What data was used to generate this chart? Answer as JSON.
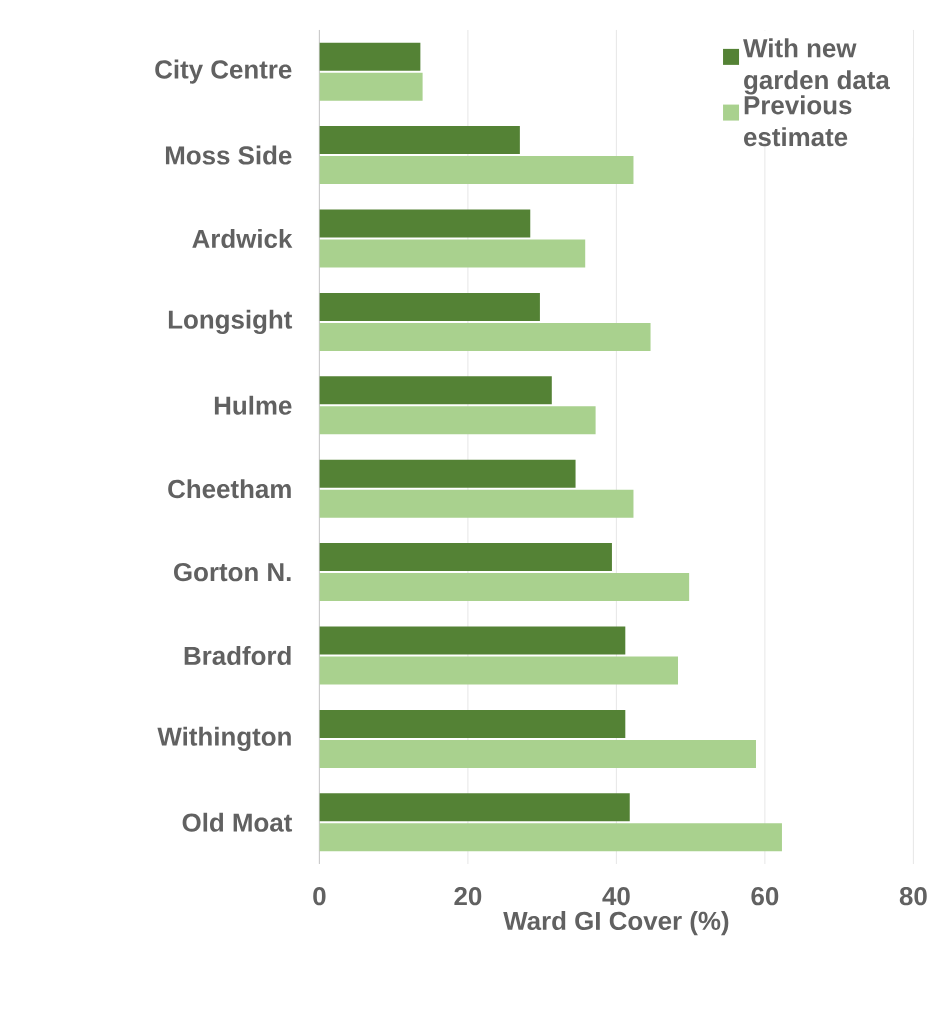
{
  "chart_data": {
    "type": "bar",
    "orientation": "horizontal",
    "xlabel": "Ward GI Cover (%)",
    "categories": [
      "City Centre",
      "Moss Side",
      "Ardwick",
      "Longsight",
      "Hulme",
      "Cheetham",
      "Gorton N.",
      "Bradford",
      "Withington",
      "Old Moat"
    ],
    "series": [
      {
        "name": "With new garden data",
        "color": "#548235",
        "values": [
          13.6,
          27.0,
          28.4,
          29.7,
          31.3,
          34.5,
          39.4,
          41.2,
          41.2,
          41.8
        ]
      },
      {
        "name": "Previous estimate",
        "color": "#a9d18e",
        "values": [
          13.9,
          42.3,
          35.8,
          44.6,
          37.2,
          42.3,
          49.8,
          48.3,
          58.8,
          62.3
        ]
      }
    ],
    "xlim": [
      0,
      80
    ],
    "xticks": [
      0,
      20,
      40,
      60,
      80
    ],
    "grid": "x",
    "legend": "top right"
  }
}
